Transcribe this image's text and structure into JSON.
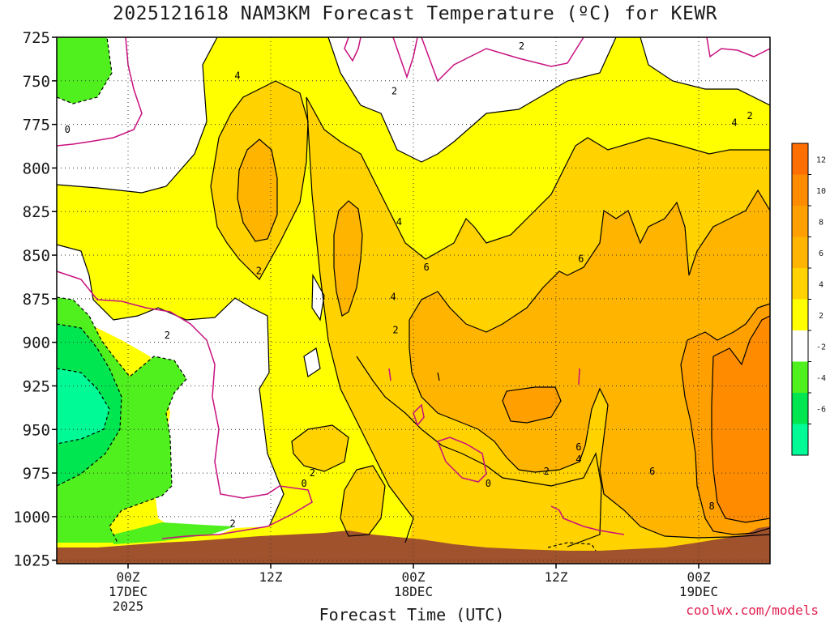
{
  "chart_data": {
    "type": "heatmap",
    "title": "2025121618 NAM3KM Forecast Temperature (ºC) for KEWR",
    "xlabel": "Forecast Time (UTC)",
    "ylabel": "",
    "x_range_hours": [
      -6,
      54
    ],
    "pressure_range_hPa": [
      725,
      1027
    ],
    "y_ticks": [
      725,
      750,
      775,
      800,
      825,
      850,
      875,
      900,
      925,
      950,
      975,
      1000,
      1025
    ],
    "x_ticks": [
      {
        "hour": 0,
        "lines": [
          "00Z",
          "17DEC",
          "2025"
        ]
      },
      {
        "hour": 12,
        "lines": [
          "12Z"
        ]
      },
      {
        "hour": 24,
        "lines": [
          "00Z",
          "18DEC"
        ]
      },
      {
        "hour": 36,
        "lines": [
          "12Z"
        ]
      },
      {
        "hour": 48,
        "lines": [
          "00Z",
          "19DEC"
        ]
      }
    ],
    "grid": true,
    "colorbar": {
      "levels": [
        {
          "lo": 12,
          "hi": 14,
          "color": "#ff6e00"
        },
        {
          "lo": 10,
          "hi": 12,
          "color": "#ff8c00"
        },
        {
          "lo": 8,
          "hi": 10,
          "color": "#ffa000"
        },
        {
          "lo": 6,
          "hi": 8,
          "color": "#ffb400"
        },
        {
          "lo": 4,
          "hi": 6,
          "color": "#ffd200"
        },
        {
          "lo": 2,
          "hi": 4,
          "color": "#ffff00"
        },
        {
          "lo": -2,
          "hi": 2,
          "color": "#ffffff"
        },
        {
          "lo": -4,
          "hi": -2,
          "color": "#50f01e"
        },
        {
          "lo": -6,
          "hi": -4,
          "color": "#00e650"
        },
        {
          "lo": -8,
          "hi": -6,
          "color": "#00fa96"
        }
      ],
      "tick_labels": [
        "12",
        "10",
        "8",
        "6",
        "4",
        "2",
        "-2",
        "-4",
        "-6"
      ]
    },
    "contour_labels": [
      {
        "text": "4",
        "hour": 9.2,
        "p": 747
      },
      {
        "text": "2",
        "hour": 22.4,
        "p": 756
      },
      {
        "text": "2",
        "hour": 33.1,
        "p": 730
      },
      {
        "text": "2",
        "hour": 52.3,
        "p": 770
      },
      {
        "text": "4",
        "hour": 51.0,
        "p": 774
      },
      {
        "text": "0",
        "hour": -5.1,
        "p": 778
      },
      {
        "text": "4",
        "hour": 22.8,
        "p": 831
      },
      {
        "text": "6",
        "hour": 25.1,
        "p": 857
      },
      {
        "text": "6",
        "hour": 38.1,
        "p": 852
      },
      {
        "text": "2",
        "hour": 11.0,
        "p": 859
      },
      {
        "text": "4",
        "hour": 22.3,
        "p": 874
      },
      {
        "text": "2",
        "hour": 22.5,
        "p": 893
      },
      {
        "text": "2",
        "hour": 3.3,
        "p": 896
      },
      {
        "text": "6",
        "hour": 37.9,
        "p": 960
      },
      {
        "text": "4",
        "hour": 37.9,
        "p": 967
      },
      {
        "text": "2",
        "hour": 35.2,
        "p": 974
      },
      {
        "text": "2",
        "hour": 15.5,
        "p": 975
      },
      {
        "text": "0",
        "hour": 14.8,
        "p": 981
      },
      {
        "text": "0",
        "hour": 30.3,
        "p": 981
      },
      {
        "text": "6",
        "hour": 44.1,
        "p": 974
      },
      {
        "text": "8",
        "hour": 49.1,
        "p": 994
      },
      {
        "text": "2",
        "hour": 8.8,
        "p": 1004
      }
    ]
  },
  "axis_labels": {
    "x": "Forecast Time (UTC)"
  },
  "watermark": "coolwx.com/models"
}
